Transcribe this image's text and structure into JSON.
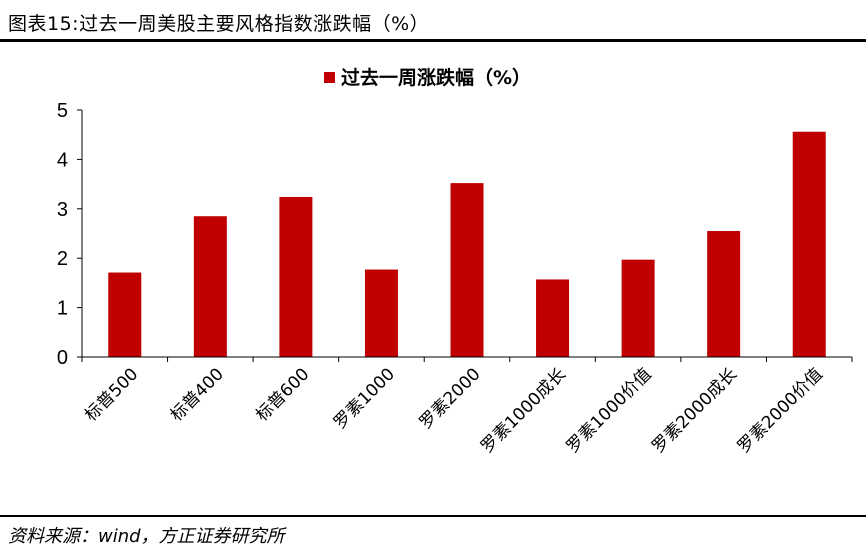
{
  "figure_title": "图表15:过去一周美股主要风格指数涨跌幅（%）",
  "source_note": "资料来源：wind，方正证券研究所",
  "colors": {
    "bar": "#C00000",
    "axis": "#000000"
  },
  "chart_data": {
    "type": "bar",
    "title": "",
    "xlabel": "",
    "ylabel": "",
    "ylim": [
      0,
      5
    ],
    "yticks": [
      0,
      1,
      2,
      3,
      4,
      5
    ],
    "grid": false,
    "legend_position": "top-center",
    "categories": [
      "标普500",
      "标普400",
      "标普600",
      "罗素1000",
      "罗素2000",
      "罗素1000成长",
      "罗素1000价值",
      "罗素2000成长",
      "罗素2000价值"
    ],
    "series": [
      {
        "name": "过去一周涨跌幅（%）",
        "values": [
          1.71,
          2.85,
          3.24,
          1.77,
          3.52,
          1.57,
          1.97,
          2.55,
          4.56
        ]
      }
    ]
  }
}
